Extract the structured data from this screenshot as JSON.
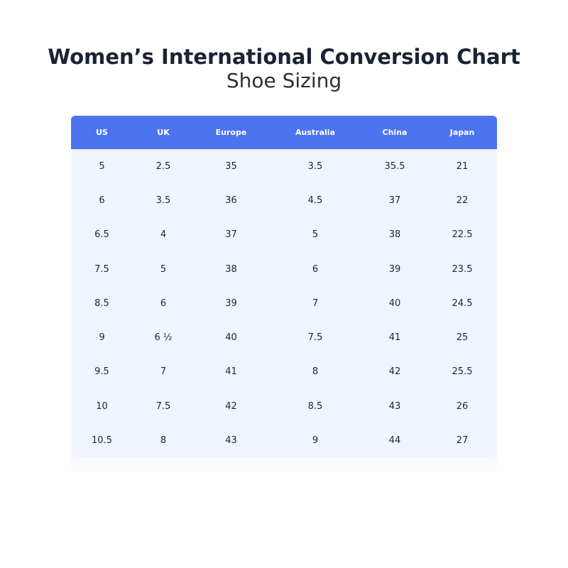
{
  "title": "Women’s International Conversion Chart",
  "subtitle": "Shoe Sizing",
  "colors": {
    "header_bg": "#4d74ef",
    "body_bg": "#eff5fe",
    "header_text": "#ffffff",
    "text": "#1e2433"
  },
  "table": {
    "columns": [
      "US",
      "UK",
      "Europe",
      "Australia",
      "China",
      "Japan"
    ],
    "rows": [
      [
        "5",
        "2.5",
        "35",
        "3.5",
        "35.5",
        "21"
      ],
      [
        "6",
        "3.5",
        "36",
        "4.5",
        "37",
        "22"
      ],
      [
        "6.5",
        "4",
        "37",
        "5",
        "38",
        "22.5"
      ],
      [
        "7.5",
        "5",
        "38",
        "6",
        "39",
        "23.5"
      ],
      [
        "8.5",
        "6",
        "39",
        "7",
        "40",
        "24.5"
      ],
      [
        "9",
        "6 ½",
        "40",
        "7.5",
        "41",
        "25"
      ],
      [
        "9.5",
        "7",
        "41",
        "8",
        "42",
        "25.5"
      ],
      [
        "10",
        "7.5",
        "42",
        "8.5",
        "43",
        "26"
      ],
      [
        "10.5",
        "8",
        "43",
        "9",
        "44",
        "27"
      ]
    ]
  }
}
